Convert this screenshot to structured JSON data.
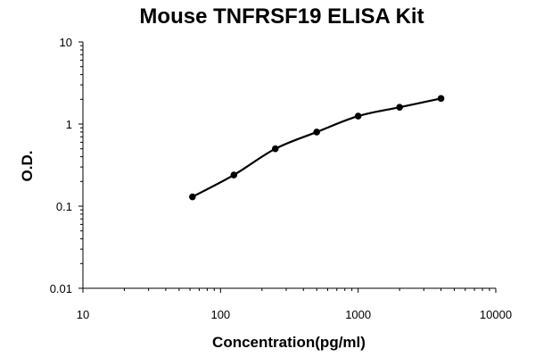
{
  "chart_data": {
    "type": "line",
    "title": "Mouse TNFRSF19 ELISA Kit",
    "xlabel": "Concentration(pg/ml)",
    "ylabel": "O.D.",
    "x_scale": "log",
    "y_scale": "log",
    "xlim": [
      10,
      10000
    ],
    "ylim": [
      0.01,
      10
    ],
    "x_ticks": [
      "10",
      "100",
      "1000",
      "10000"
    ],
    "y_ticks": [
      "0.01",
      "0.1",
      "1",
      "10"
    ],
    "grid": false,
    "legend": "none",
    "series": [
      {
        "x": [
          62.5,
          125,
          250,
          500,
          1000,
          2000,
          4000
        ],
        "y": [
          0.13,
          0.24,
          0.5,
          0.8,
          1.25,
          1.6,
          2.05
        ]
      }
    ],
    "colors": {
      "line": "#000000",
      "marker": "#000000",
      "axis": "#000000"
    }
  }
}
